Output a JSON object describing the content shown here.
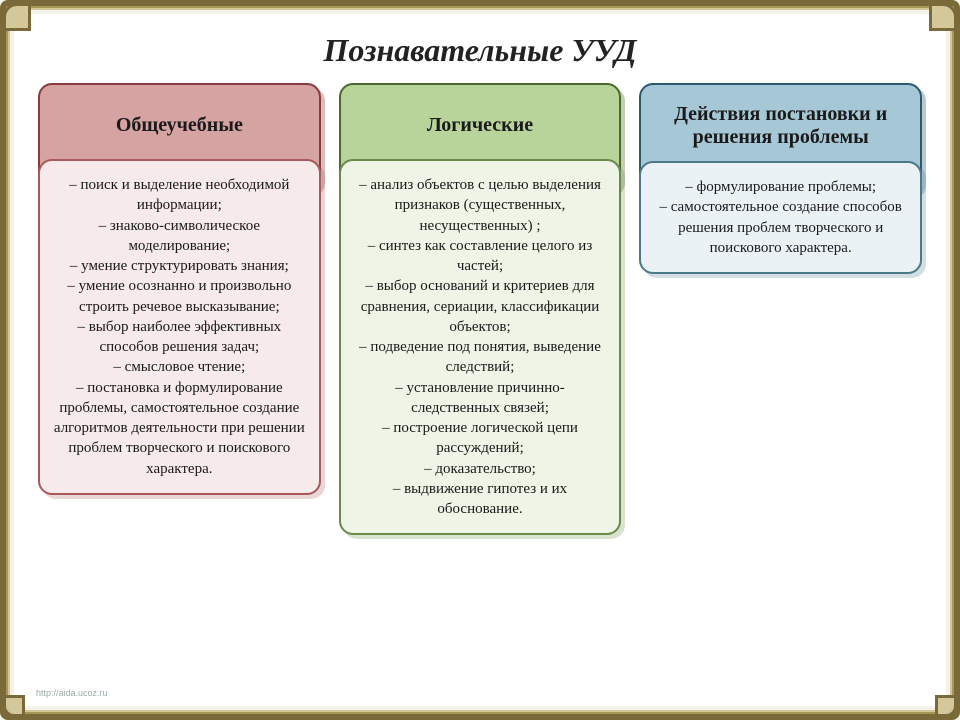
{
  "title": "Познавательные УУД",
  "title_fontsize": 32,
  "header_fontsize": 20,
  "body_fontsize": 15,
  "background_page": "#ffffff",
  "background_outer": "#f5f2e8",
  "frame_color": "#7a6a3a",
  "columns": [
    {
      "id": "general",
      "header": "Общеучебные",
      "header_bg": "#d6a3a3",
      "header_border": "#8a3a3a",
      "body_bg": "#f6eaea",
      "body_border": "#a85a5a",
      "body_text": "– поиск и выделение необходимой информации;\n–  знаково-символическое моделирование;\n–  умение структурировать знания;\n– умение осознанно и произвольно строить речевое высказывание;\n– выбор наиболее эффективных способов решения задач;\n–  смысловое чтение;\n–  постановка и формулирование проблемы, самостоятельное создание алгоритмов деятельности при решении проблем творческого и поискового характера."
    },
    {
      "id": "logical",
      "header": "Логические",
      "header_bg": "#b8d49a",
      "header_border": "#4a6a2a",
      "body_bg": "#eef5e6",
      "body_border": "#6a8a4a",
      "body_text": "– анализ объектов  с целью выделения признаков (существенных, несущественных) ;\n– синтез как составление целого из частей;\n– выбор оснований и критериев для сравнения, сериации, классификации объектов;\n– подведение под понятия, выведение следствий;\n– установление причинно-следственных связей;\n– построение логической цепи рассуждений;\n– доказательство;\n– выдвижение гипотез и их обоснование."
    },
    {
      "id": "problem",
      "header": "Действия постановки и решения проблемы",
      "header_bg": "#a6c8d6",
      "header_border": "#2a5a6a",
      "body_bg": "#eaf2f6",
      "body_border": "#4a7a8a",
      "body_text": "– формулирование проблемы;\n– самостоятельное создание способов решения проблем творческого и поискового характера."
    }
  ],
  "footer_link": "http://aida.ucoz.ru"
}
